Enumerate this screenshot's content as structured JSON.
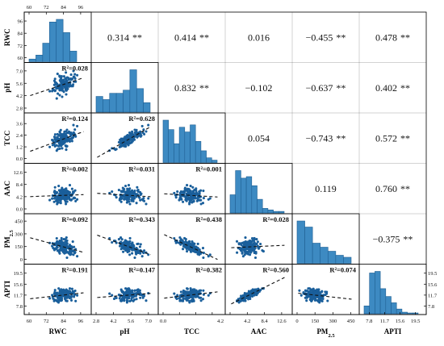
{
  "chart_data": {
    "type": "scatter",
    "variables": [
      "RWC",
      "pH",
      "TCC",
      "AAC",
      "PM",
      "APTI"
    ],
    "subscript": {
      "PM": "2.5"
    },
    "correlations": {
      "RWC-pH": "0.314",
      "RWC-TCC": "0.414",
      "RWC-AAC": "0.016",
      "RWC-PM": "−0.455",
      "RWC-APTI": "0.478",
      "pH-TCC": "0.832",
      "pH-AAC": "−0.102",
      "pH-PM": "−0.637",
      "pH-APTI": "0.402",
      "TCC-AAC": "0.054",
      "TCC-PM": "−0.743",
      "TCC-APTI": "0.572",
      "AAC-PM": "0.119",
      "AAC-APTI": "0.760",
      "PM-APTI": "−0.375"
    },
    "significance": {
      "RWC-pH": "**",
      "RWC-TCC": "**",
      "RWC-AAC": "",
      "RWC-PM": "**",
      "RWC-APTI": "**",
      "pH-TCC": "**",
      "pH-AAC": "",
      "pH-PM": "**",
      "pH-APTI": "**",
      "TCC-AAC": "",
      "TCC-PM": "**",
      "TCC-APTI": "**",
      "AAC-PM": "",
      "AAC-APTI": "**",
      "PM-APTI": "**"
    },
    "r_squared": {
      "pH-RWC": "R²=0.028",
      "TCC-RWC": "R²=0.124",
      "TCC-pH": "R²=0.628",
      "AAC-RWC": "R²=0.002",
      "AAC-pH": "R²=0.031",
      "AAC-TCC": "R²=0.001",
      "PM-RWC": "R²=0.092",
      "PM-pH": "R²=0.343",
      "PM-TCC": "R²=0.438",
      "PM-AAC": "R²=0.028",
      "APTI-RWC": "R²=0.191",
      "APTI-pH": "R²=0.147",
      "APTI-TCC": "R²=0.382",
      "APTI-AAC": "R²=0.560",
      "APTI-PM": "R²=0.074"
    },
    "axis_ranges": {
      "RWC": [
        60,
        100
      ],
      "pH": [
        2.8,
        7.4
      ],
      "TCC": [
        0,
        4.2
      ],
      "AAC": [
        0,
        14
      ],
      "PM": [
        0,
        480
      ],
      "APTI": [
        6.5,
        21
      ]
    },
    "ticks": {
      "RWC": [
        60,
        72,
        84,
        96
      ],
      "pH": [
        2.8,
        4.2,
        5.6,
        7.0
      ],
      "TCC": [
        0.0,
        1.2,
        2.4,
        3.6
      ],
      "AAC": [
        0.0,
        4.2,
        8.4,
        12.6
      ],
      "PM": [
        0,
        150,
        300,
        450
      ],
      "APTI": [
        7.8,
        11.7,
        15.6,
        19.5
      ]
    },
    "x_tick_labels": {
      "RWC": [
        "60",
        "72",
        "84",
        "96"
      ],
      "pH": [
        "2.8",
        "4.2",
        "5.6",
        "7.0"
      ],
      "TCC": [
        "0.0",
        "4.2"
      ],
      "AAC": [
        "4.2",
        "8.4",
        "12.6"
      ],
      "PM": [
        "0",
        "150",
        "300",
        "450"
      ],
      "APTI": [
        "7.8",
        "11.7",
        "15.6",
        "19.5"
      ]
    },
    "top_tick_labels": [
      "60",
      "72",
      "84",
      "96"
    ],
    "right_tick_labels": [
      "19.5",
      "15.6",
      "11.7",
      "7.8"
    ],
    "y_tick_labels": {
      "RWC": [
        "96",
        "84",
        "72",
        "60"
      ],
      "pH": [
        "7.0",
        "5.6",
        "4.2",
        "2.8"
      ],
      "TCC": [
        "3.6",
        "2.4",
        "1.2",
        "0.0"
      ],
      "AAC": [
        "12.6",
        "8.4",
        "4.2",
        "0.0"
      ],
      "PM": [
        "450",
        "300",
        "150",
        "0"
      ],
      "APTI": [
        "19.5",
        "15.6",
        "11.7",
        "7.8"
      ]
    },
    "histograms": {
      "RWC": [
        2,
        5,
        14,
        30,
        32,
        22,
        8
      ],
      "pH": [
        10,
        8,
        12,
        12,
        14,
        27,
        15,
        6
      ],
      "TCC": [
        18,
        14,
        8,
        15,
        13,
        16,
        9,
        5,
        2,
        1
      ],
      "AAC": [
        12,
        28,
        23,
        24,
        18,
        9,
        3,
        2,
        1,
        1
      ],
      "PM": [
        21,
        18,
        10,
        8,
        6,
        4,
        3
      ],
      "APTI": [
        5,
        26,
        27,
        16,
        11,
        7,
        3,
        1,
        0.5,
        0.5
      ]
    },
    "colors": {
      "bar": "#3d8ac2",
      "bar_edge": "#1e5f93",
      "point": "#1a5f9b",
      "trend": "#111111",
      "frame": "#000000"
    }
  }
}
